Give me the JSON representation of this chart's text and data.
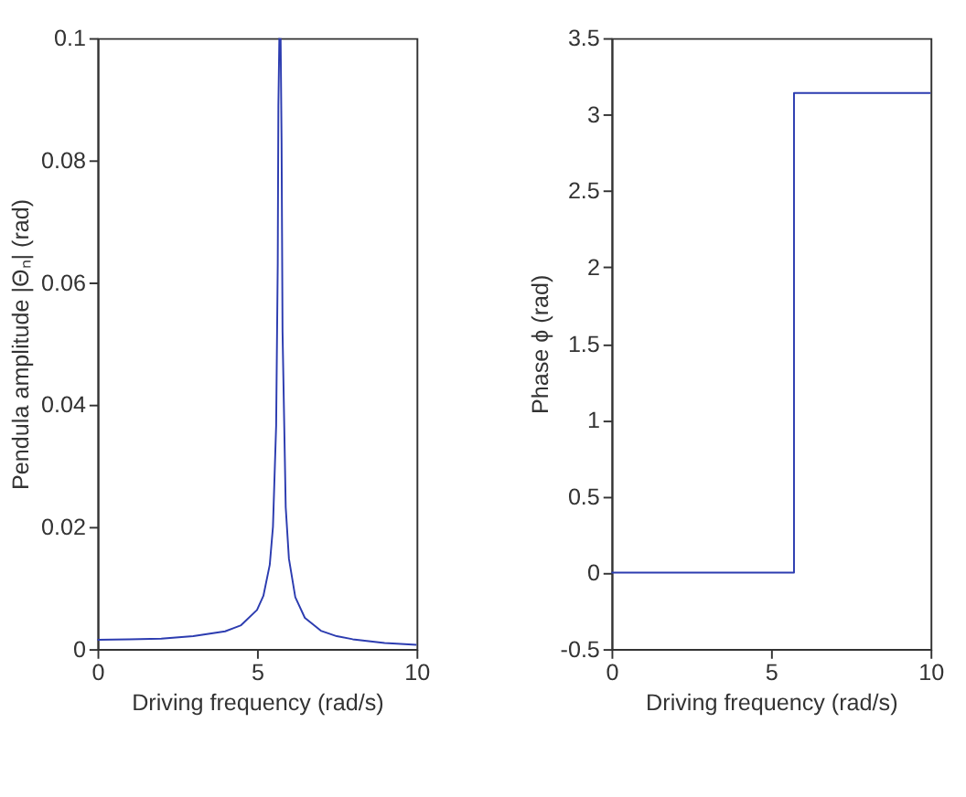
{
  "chart_data": [
    {
      "type": "line",
      "xlabel": "Driving frequency (rad/s)",
      "ylabel": "Pendula amplitude |Θₙ| (rad)",
      "xlim": [
        0,
        10
      ],
      "xticks": [
        0,
        5,
        10
      ],
      "ylim": [
        0,
        0.1
      ],
      "yticks": [
        0,
        0.02,
        0.04,
        0.06,
        0.08,
        0.1
      ],
      "series": [
        {
          "color": "#2c3cb0",
          "x": [
            0,
            1,
            2,
            3,
            4,
            4.5,
            5,
            5.2,
            5.4,
            5.5,
            5.6,
            5.65,
            5.67,
            5.7,
            5.72,
            5.74,
            5.77,
            5.8,
            5.9,
            6,
            6.2,
            6.5,
            7,
            7.5,
            8,
            9,
            10
          ],
          "values": [
            0.0015,
            0.0016,
            0.0017,
            0.0021,
            0.0029,
            0.0039,
            0.0064,
            0.0087,
            0.0138,
            0.02,
            0.0366,
            0.063,
            0.089,
            0.1,
            null,
            0.1,
            0.083,
            0.052,
            0.0232,
            0.0148,
            0.0085,
            0.0051,
            0.003,
            0.0021,
            0.0016,
            0.001,
            0.0007
          ]
        }
      ]
    },
    {
      "type": "line",
      "xlabel": "Driving frequency (rad/s)",
      "ylabel": "Phase ϕ (rad)",
      "xlim": [
        0,
        10
      ],
      "xticks": [
        0,
        5,
        10
      ],
      "ylim": [
        -0.5,
        3.5
      ],
      "yticks": [
        -0.5,
        0,
        0.5,
        1,
        1.5,
        2,
        2.5,
        3,
        3.5
      ],
      "series": [
        {
          "color": "#2c3cb0",
          "x": [
            0,
            5.72,
            5.72,
            10
          ],
          "values": [
            0,
            0,
            3.14,
            3.14
          ]
        }
      ]
    }
  ]
}
